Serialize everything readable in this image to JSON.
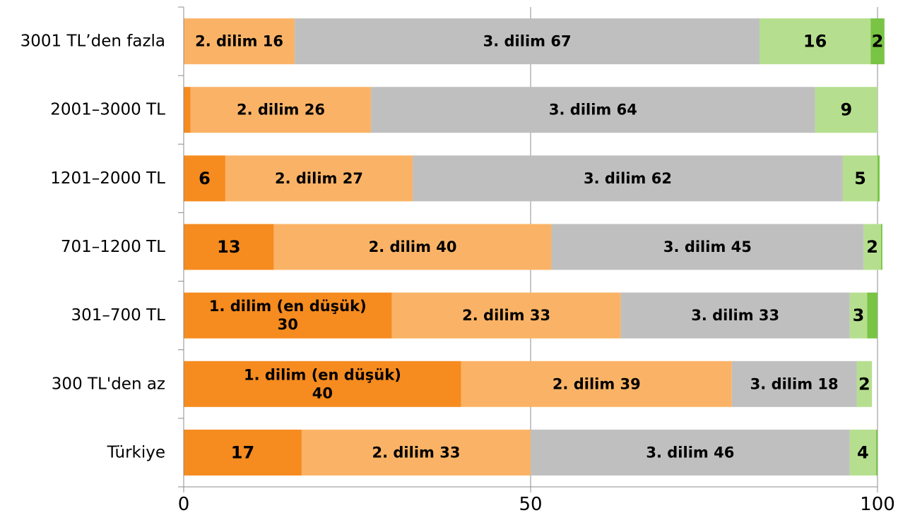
{
  "chart_data": {
    "type": "bar",
    "orientation": "horizontal",
    "stacked": true,
    "categories": [
      "3001 TL’den fazla",
      "2001–3000 TL",
      "1201–2000 TL",
      "701–1200 TL",
      "301–700 TL",
      "300 TL'den az",
      "Türkiye"
    ],
    "series": [
      {
        "values": [
          0,
          1,
          6,
          13,
          30,
          40,
          17
        ],
        "color": "#f68b1f",
        "labels": [
          "",
          "",
          "6",
          "13",
          "1. dilim (en düşük)\n30",
          "1. dilim (en düşük)\n40",
          "17"
        ]
      },
      {
        "values": [
          16,
          26,
          27,
          40,
          33,
          39,
          33
        ],
        "color": "#fab366",
        "labels": [
          "2. dilim 16",
          "2. dilim 26",
          "2. dilim 27",
          "2. dilim 40",
          "2. dilim 33",
          "2. dilim 39",
          "2. dilim 33"
        ]
      },
      {
        "values": [
          67,
          64,
          62,
          45,
          33,
          18,
          46
        ],
        "color": "#bfbfbf",
        "labels": [
          "3. dilim 67",
          "3. dilim 64",
          "3. dilim 62",
          "3. dilim 45",
          "3. dilim 33",
          "3. dilim 18",
          "3. dilim 46"
        ]
      },
      {
        "values": [
          16,
          9,
          5,
          2.5,
          2.5,
          2.2,
          3.8
        ],
        "color": "#b5df8e",
        "labels": [
          "16",
          "9",
          "5",
          "2",
          "3",
          "2",
          "4"
        ]
      },
      {
        "values": [
          2,
          0,
          0.3,
          0.2,
          1.5,
          0,
          0.2
        ],
        "color": "#79c445",
        "labels": [
          "2",
          "",
          "",
          "",
          "",
          "",
          ""
        ]
      }
    ],
    "xlim": [
      0,
      100
    ],
    "xticks": [
      "0",
      "50",
      "100"
    ],
    "grid": true
  }
}
